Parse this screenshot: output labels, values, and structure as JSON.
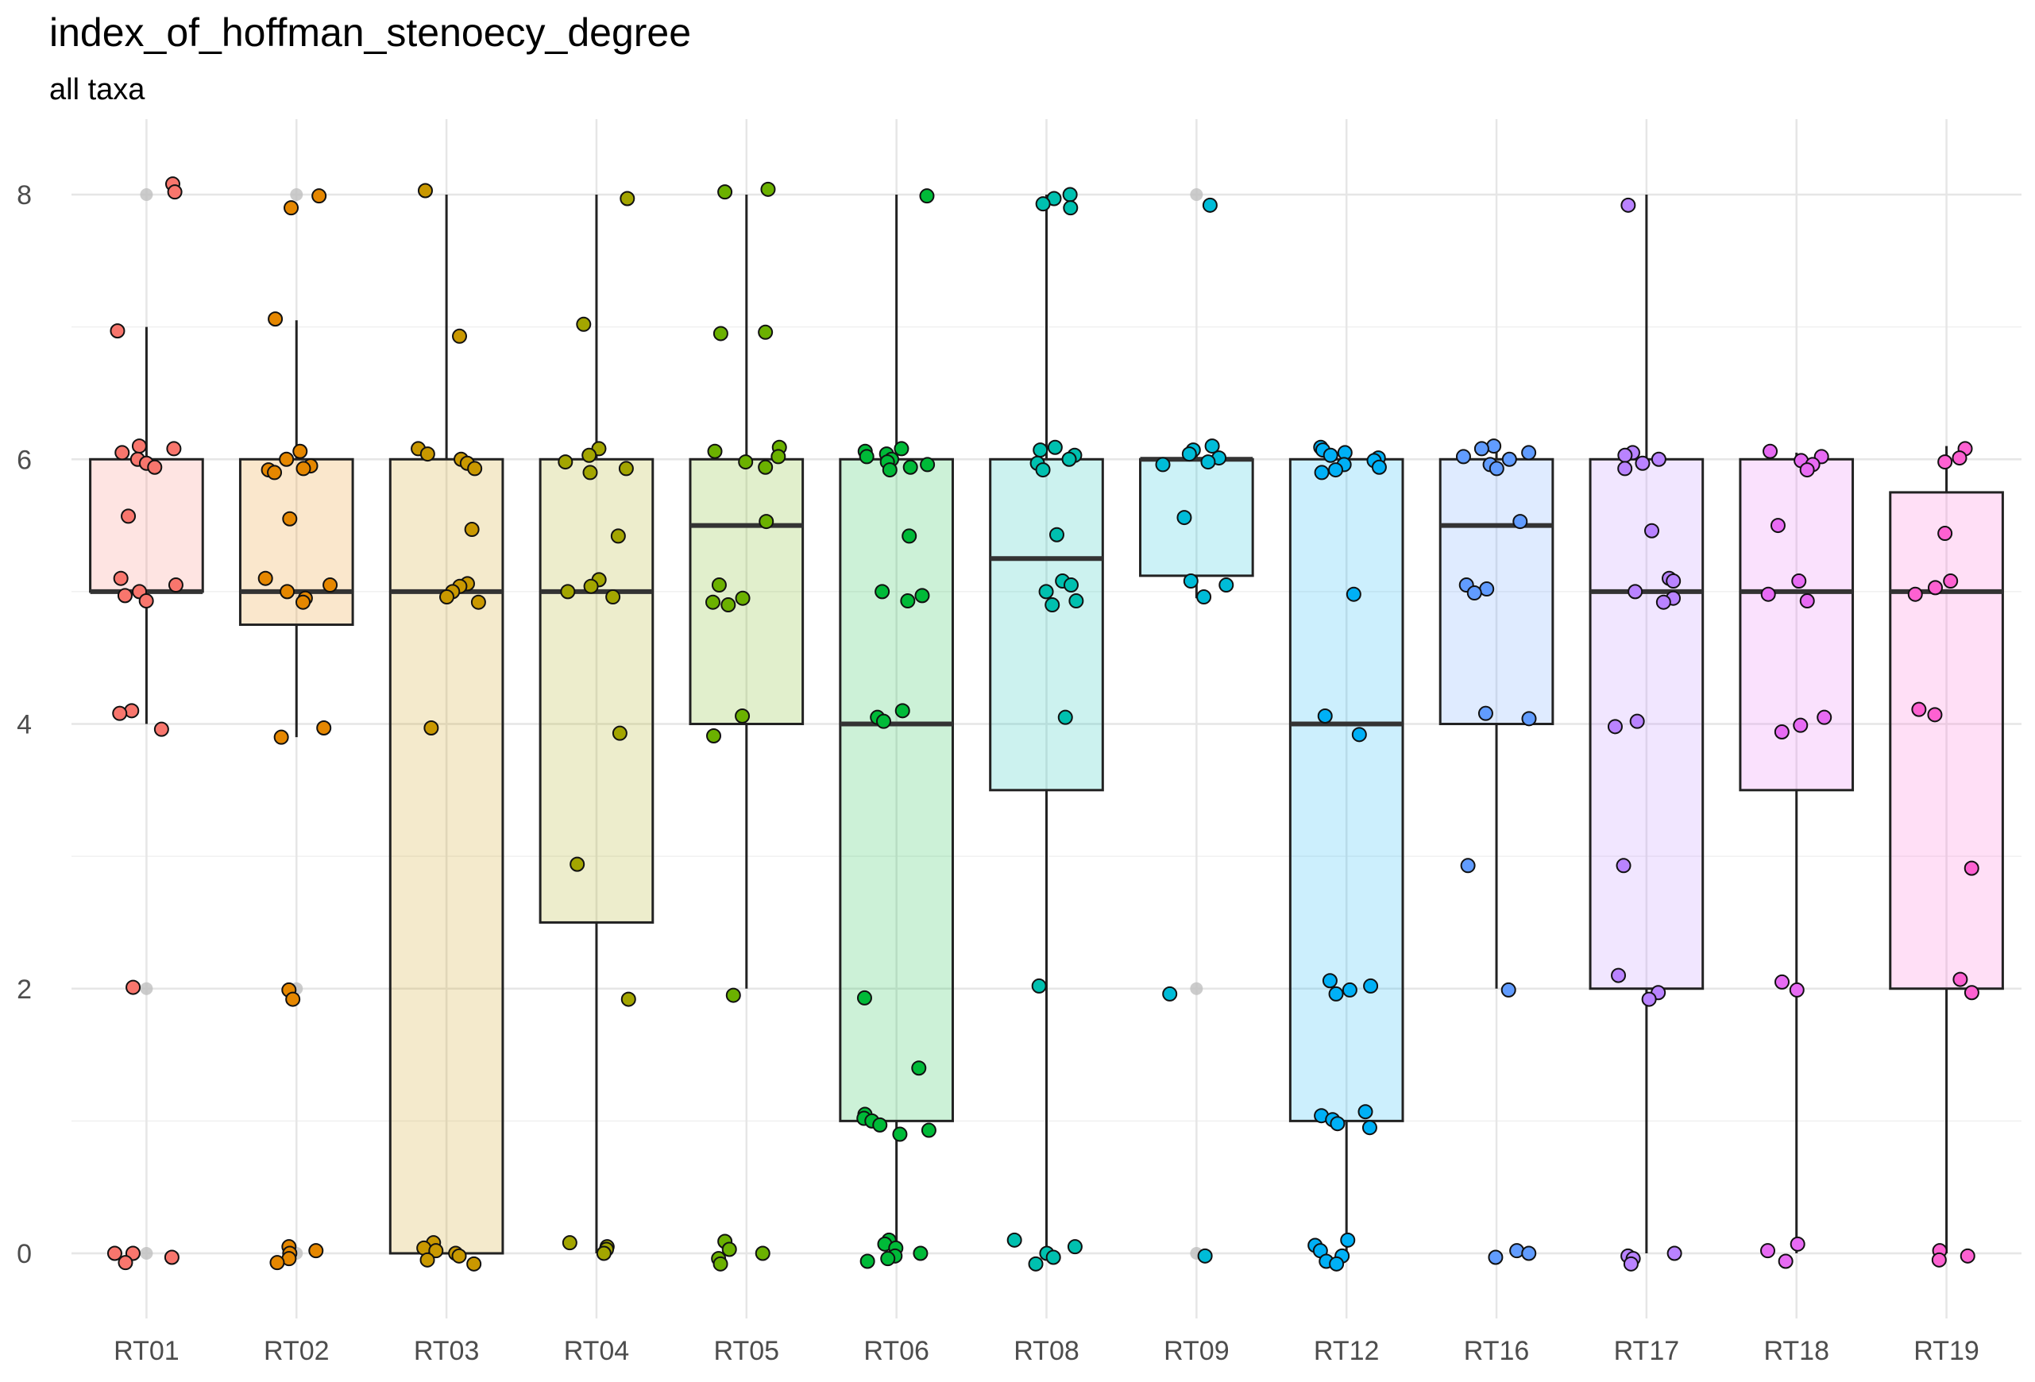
{
  "chart_data": {
    "type": "box",
    "title": "index_of_hoffman_stenoecy_degree",
    "subtitle": "all taxa",
    "xlabel": "",
    "ylabel": "",
    "ylim": [
      -0.9,
      8.5
    ],
    "yticks": [
      0,
      2,
      4,
      6,
      8
    ],
    "grid": true,
    "legend": "none",
    "categories": [
      "RT01",
      "RT02",
      "RT03",
      "RT04",
      "RT05",
      "RT06",
      "RT08",
      "RT09",
      "RT12",
      "RT16",
      "RT17",
      "RT18",
      "RT19"
    ],
    "colors": [
      "#F8766D",
      "#E58700",
      "#C99800",
      "#A3A500",
      "#6BB100",
      "#00BA38",
      "#00C0AF",
      "#00BCD8",
      "#00B0F6",
      "#619CFF",
      "#B983FF",
      "#E76BF3",
      "#FD61D1"
    ],
    "boxes": [
      {
        "category": "RT01",
        "min": 4,
        "q1": 5,
        "median": 5,
        "q3": 6,
        "max": 7,
        "points": [
          8.08,
          8.02,
          6.97,
          6.1,
          6.08,
          6.05,
          6.0,
          5.97,
          5.94,
          5.57,
          5.1,
          5.05,
          5.0,
          4.97,
          4.93,
          4.1,
          4.08,
          3.96,
          2.01,
          0.0,
          0.0,
          -0.03,
          -0.07
        ],
        "outliers": [
          8,
          2,
          0
        ]
      },
      {
        "category": "RT02",
        "min": 3.9,
        "q1": 4.75,
        "median": 5,
        "q3": 6,
        "max": 7.05,
        "points": [
          7.99,
          7.9,
          7.06,
          6.06,
          6.0,
          5.95,
          5.93,
          5.92,
          5.9,
          5.55,
          5.1,
          5.05,
          5.0,
          4.95,
          4.92,
          3.97,
          3.9,
          1.99,
          1.92,
          0.05,
          0.02,
          0.0,
          -0.04,
          -0.07
        ],
        "outliers": [
          8,
          2,
          0
        ]
      },
      {
        "category": "RT03",
        "min": 0,
        "q1": 0,
        "median": 5,
        "q3": 6,
        "max": 8,
        "points": [
          8.03,
          6.93,
          6.08,
          6.04,
          6.0,
          5.97,
          5.93,
          5.47,
          5.06,
          5.04,
          5.0,
          4.96,
          4.92,
          3.97,
          0.08,
          0.04,
          0.02,
          0.0,
          -0.02,
          -0.05,
          -0.08
        ],
        "outliers": []
      },
      {
        "category": "RT04",
        "min": 0,
        "q1": 2.5,
        "median": 5,
        "q3": 6,
        "max": 8,
        "points": [
          7.97,
          7.02,
          6.08,
          6.03,
          5.98,
          5.93,
          5.9,
          5.42,
          5.09,
          5.04,
          5.0,
          4.96,
          3.93,
          2.94,
          1.92,
          0.08,
          0.05,
          0.03,
          0.0
        ],
        "outliers": []
      },
      {
        "category": "RT05",
        "min": 2,
        "q1": 4,
        "median": 5.5,
        "q3": 6,
        "max": 8,
        "points": [
          8.04,
          8.02,
          6.96,
          6.95,
          6.09,
          6.06,
          6.02,
          5.98,
          5.94,
          5.53,
          5.05,
          4.95,
          4.92,
          4.9,
          4.06,
          3.91,
          1.95,
          0.09,
          0.03,
          0.0,
          -0.04,
          -0.08
        ],
        "outliers": []
      },
      {
        "category": "RT06",
        "min": 0,
        "q1": 1,
        "median": 4,
        "q3": 6,
        "max": 8,
        "points": [
          7.99,
          6.08,
          6.06,
          6.04,
          6.02,
          6.0,
          5.98,
          5.96,
          5.94,
          5.92,
          5.42,
          5.0,
          4.97,
          4.93,
          4.1,
          4.05,
          4.02,
          1.93,
          1.4,
          1.05,
          1.02,
          1.0,
          0.97,
          0.93,
          0.9,
          0.1,
          0.07,
          0.04,
          0.0,
          -0.02,
          -0.04,
          -0.06
        ],
        "outliers": []
      },
      {
        "category": "RT08",
        "min": 0,
        "q1": 3.5,
        "median": 5.25,
        "q3": 6,
        "max": 8,
        "points": [
          8.0,
          7.97,
          7.93,
          7.9,
          6.09,
          6.07,
          6.03,
          6.0,
          5.97,
          5.92,
          5.43,
          5.08,
          5.05,
          5.0,
          4.93,
          4.9,
          4.05,
          2.02,
          0.1,
          0.05,
          0.0,
          -0.03,
          -0.08
        ],
        "outliers": []
      },
      {
        "category": "RT09",
        "min": 4.95,
        "q1": 5.12,
        "median": 6,
        "q3": 6,
        "max": 6.1,
        "points": [
          7.92,
          6.1,
          6.07,
          6.04,
          6.01,
          5.98,
          5.96,
          5.56,
          5.08,
          5.05,
          4.96,
          1.96,
          -0.02
        ],
        "outliers": [
          8,
          2,
          0
        ]
      },
      {
        "category": "RT12",
        "min": 0,
        "q1": 1,
        "median": 4,
        "q3": 6,
        "max": 6.1,
        "points": [
          6.09,
          6.07,
          6.05,
          6.03,
          6.01,
          5.99,
          5.96,
          5.94,
          5.92,
          5.9,
          4.98,
          4.06,
          3.92,
          2.06,
          2.02,
          1.99,
          1.96,
          1.07,
          1.04,
          1.01,
          0.98,
          0.95,
          0.1,
          0.06,
          0.02,
          -0.02,
          -0.06,
          -0.08
        ],
        "outliers": []
      },
      {
        "category": "RT16",
        "min": 2,
        "q1": 4,
        "median": 5.5,
        "q3": 6,
        "max": 6.1,
        "points": [
          6.1,
          6.08,
          6.05,
          6.02,
          6.0,
          5.96,
          5.93,
          5.53,
          5.05,
          5.02,
          4.99,
          4.08,
          4.04,
          2.93,
          1.99,
          0.02,
          0.0,
          -0.03
        ],
        "outliers": []
      },
      {
        "category": "RT17",
        "min": 0,
        "q1": 2,
        "median": 5,
        "q3": 6,
        "max": 8,
        "points": [
          7.92,
          6.05,
          6.03,
          6.0,
          5.97,
          5.93,
          5.46,
          5.1,
          5.08,
          5.0,
          4.95,
          4.92,
          4.02,
          3.98,
          2.93,
          2.1,
          1.97,
          1.92,
          0.0,
          -0.02,
          -0.04,
          -0.08
        ],
        "outliers": []
      },
      {
        "category": "RT18",
        "min": 0,
        "q1": 3.5,
        "median": 5,
        "q3": 6,
        "max": 6.05,
        "points": [
          6.06,
          6.02,
          5.99,
          5.96,
          5.92,
          5.5,
          5.08,
          4.98,
          4.93,
          4.05,
          3.99,
          3.94,
          2.05,
          1.99,
          0.07,
          0.02,
          -0.06
        ],
        "outliers": []
      },
      {
        "category": "RT19",
        "min": 0,
        "q1": 2,
        "median": 5,
        "q3": 5.75,
        "max": 6.1,
        "points": [
          6.08,
          6.01,
          5.98,
          5.44,
          5.08,
          5.03,
          4.98,
          4.11,
          4.07,
          2.91,
          2.07,
          1.97,
          0.02,
          -0.02,
          -0.05
        ],
        "outliers": []
      }
    ]
  }
}
